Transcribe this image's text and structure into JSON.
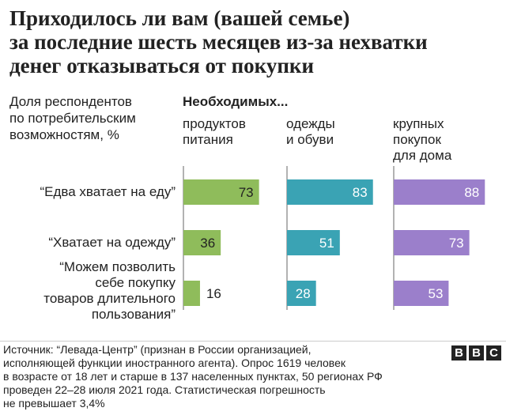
{
  "title_lines": [
    "Приходилось ли вам (вашей семье)",
    "за последние шесть месяцев из-за нехватки",
    "денег отказываться от покупки"
  ],
  "ylabel_lines": [
    "Доля респондентов",
    "по потребительским",
    "возможностям, %"
  ],
  "group_heading": "Необходимых...",
  "chart_data": {
    "type": "bar",
    "orientation": "horizontal",
    "title": "Приходилось ли вам (вашей семье) за последние шесть месяцев из-за нехватки денег отказываться от покупки",
    "ylabel": "Доля респондентов по потребительским возможностям, %",
    "categories": [
      "“Едва хватает на еду”",
      "“Хватает на одежду”",
      "“Можем позволить себе покупку товаров длительного пользования”"
    ],
    "category_lines": [
      [
        "“Едва хватает на еду”"
      ],
      [
        "“Хватает на одежду”"
      ],
      [
        "“Можем позволить",
        "себе покупку",
        "товаров длительного",
        "пользования”"
      ]
    ],
    "xlim": [
      0,
      100
    ],
    "grid": false,
    "legend": "none",
    "series": [
      {
        "name": "продуктов питания",
        "label_lines": [
          "продуктов",
          "питания"
        ],
        "color": "#8fbc5b",
        "values": [
          73,
          36,
          16
        ]
      },
      {
        "name": "одежды и обуви",
        "label_lines": [
          "одежды",
          "и обуви"
        ],
        "color": "#3aa3b4",
        "values": [
          83,
          51,
          28
        ]
      },
      {
        "name": "крупных покупок для дома",
        "label_lines": [
          "крупных",
          "покупок",
          "для дома"
        ],
        "color": "#9b7fcb",
        "values": [
          88,
          73,
          53
        ]
      }
    ]
  },
  "source_lines": [
    "Источник: “Левада-Центр” (признан в России организацией,",
    "исполняющей функции иностранного агента). Опрос 1619 человек",
    "в возрасте от 18 лет и старше в 137 населенных пунктах, 50 регионах РФ",
    "проведен 22–28 июля 2021 года. Статистическая погрешность",
    "не превышает 3,4%"
  ],
  "logo_letters": [
    "B",
    "B",
    "C"
  ],
  "colors": {
    "text": "#222222",
    "axis": "#666666",
    "label_inside": "#ffffff",
    "label_outside": "#222222"
  }
}
